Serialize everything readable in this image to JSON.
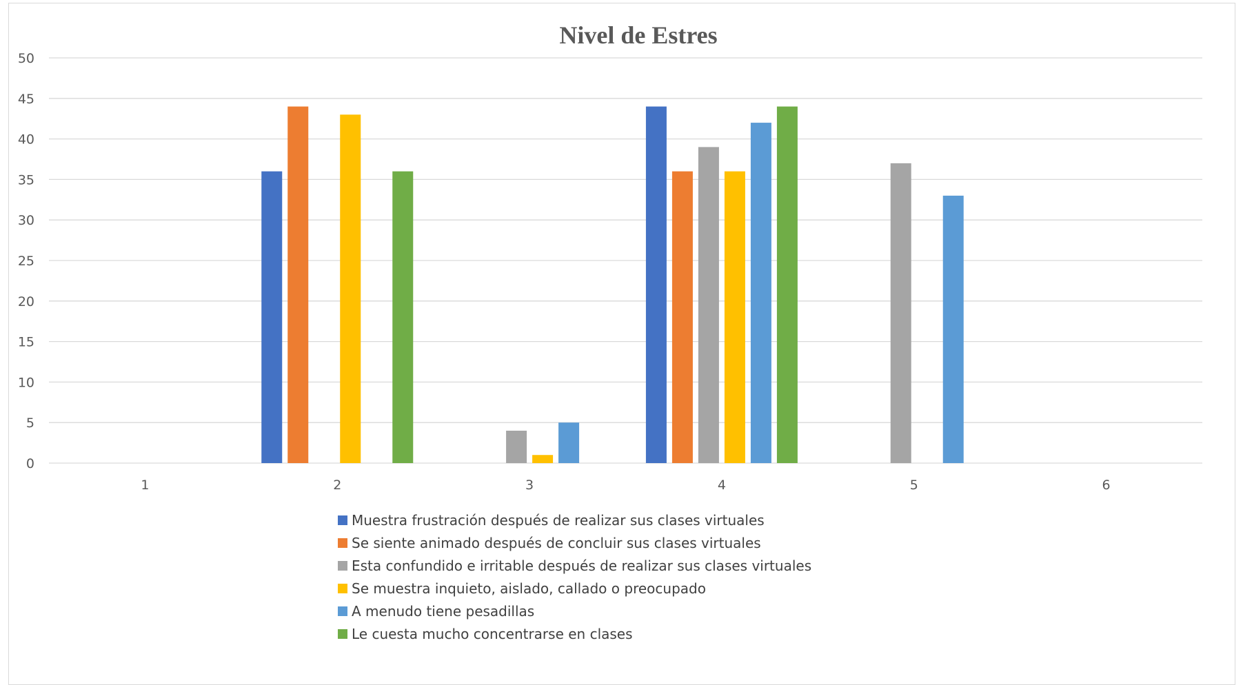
{
  "chart_data": {
    "type": "bar",
    "title": "Nivel de Estres",
    "xlabel": "",
    "ylabel": "",
    "categories": [
      "1",
      "2",
      "3",
      "4",
      "5",
      "6"
    ],
    "ylim": [
      0,
      50
    ],
    "yticks": [
      0,
      5,
      10,
      15,
      20,
      25,
      30,
      35,
      40,
      45,
      50
    ],
    "grid": true,
    "legend_position": "bottom",
    "series": [
      {
        "name": "Muestra frustración después de realizar sus clases virtuales",
        "color": "#4472C4",
        "values": [
          0,
          36,
          0,
          44,
          0,
          0
        ]
      },
      {
        "name": "Se siente animado después de concluir sus clases virtuales",
        "color": "#ED7D31",
        "values": [
          0,
          44,
          0,
          36,
          0,
          0
        ]
      },
      {
        "name": "Esta confundido e irritable después de realizar sus clases virtuales",
        "color": "#A5A5A5",
        "values": [
          0,
          0,
          4,
          39,
          37,
          0
        ]
      },
      {
        "name": "Se muestra inquieto, aislado, callado o preocupado",
        "color": "#FFC000",
        "values": [
          0,
          43,
          1,
          36,
          0,
          0
        ]
      },
      {
        "name": "A menudo tiene pesadillas",
        "color": "#5B9BD5",
        "values": [
          0,
          0,
          5,
          42,
          33,
          0
        ]
      },
      {
        "name": "Le cuesta mucho concentrarse en clases",
        "color": "#70AD47",
        "values": [
          0,
          36,
          0,
          44,
          0,
          0
        ]
      }
    ]
  }
}
